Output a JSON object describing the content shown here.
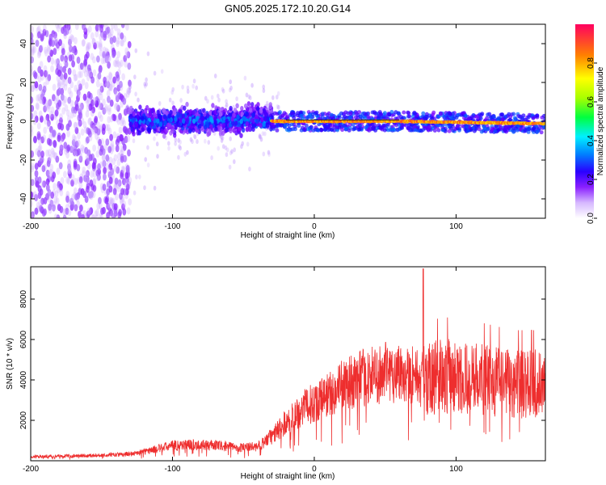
{
  "figure_title": "GN05.2025.172.10.20.G14",
  "chart_data": [
    {
      "type": "heatmap",
      "xlabel": "Height of straight line (km)",
      "ylabel": "Frequency (Hz)",
      "xlim": [
        -200,
        163
      ],
      "ylim": [
        -50,
        50
      ],
      "xticks": [
        -200,
        -100,
        0,
        100
      ],
      "yticks": [
        -40,
        -20,
        0,
        20,
        40
      ],
      "xtick_labels": [
        "-200",
        "-100",
        "0",
        "100"
      ],
      "ytick_labels": [
        "-40",
        "-20",
        "0",
        "20",
        "40"
      ],
      "colorbar": {
        "label": "Normalized spectral amplitude",
        "range": [
          0,
          1
        ],
        "ticks": [
          0.0,
          0.2,
          0.4,
          0.6,
          0.8
        ],
        "tick_labels": [
          "0.0",
          "0.2",
          "0.4",
          "0.6",
          "0.8"
        ],
        "colors": [
          "#ffffff",
          "#b07cff",
          "#7a00ff",
          "#1a00ff",
          "#0077ff",
          "#00e5ff",
          "#00ff60",
          "#b0ff00",
          "#ffff00",
          "#ff8800",
          "#ff1050"
        ]
      },
      "features": [
        {
          "x_range": [
            -200,
            -130
          ],
          "freq_range": [
            -50,
            50
          ],
          "amplitude": 0.1
        },
        {
          "x_range": [
            -130,
            -30
          ],
          "freq_range": [
            -10,
            10
          ],
          "amplitude": 0.35
        },
        {
          "x_range": [
            -30,
            163
          ],
          "freq_range": [
            -3,
            3
          ],
          "amplitude": 0.95
        }
      ]
    },
    {
      "type": "line",
      "xlabel": "Height of straight line (km)",
      "ylabel": "SNR (10 * v/v)",
      "xlim": [
        -200,
        163
      ],
      "ylim": [
        0,
        9600
      ],
      "xticks": [
        -200,
        -100,
        0,
        100
      ],
      "yticks": [
        2000,
        4000,
        6000,
        8000
      ],
      "xtick_labels": [
        "-200",
        "-100",
        "0",
        "100"
      ],
      "ytick_labels": [
        "2000",
        "4000",
        "6000",
        "8000"
      ],
      "series": [
        {
          "color": "#ee2e2e",
          "x": [
            -200,
            -180,
            -160,
            -140,
            -130,
            -120,
            -110,
            -100,
            -90,
            -80,
            -70,
            -60,
            -50,
            -40,
            -30,
            -20,
            -10,
            0,
            10,
            20,
            30,
            40,
            50,
            60,
            70,
            75,
            77,
            80,
            90,
            100,
            110,
            120,
            130,
            140,
            150,
            163
          ],
          "y": [
            200,
            230,
            250,
            300,
            330,
            450,
            600,
            750,
            800,
            780,
            760,
            700,
            650,
            700,
            1200,
            1900,
            2500,
            2900,
            3300,
            3700,
            4000,
            4200,
            4350,
            4400,
            4300,
            4000,
            4000,
            4100,
            4150,
            4200,
            4100,
            4000,
            3900,
            3800,
            3800,
            3800
          ]
        }
      ]
    }
  ]
}
